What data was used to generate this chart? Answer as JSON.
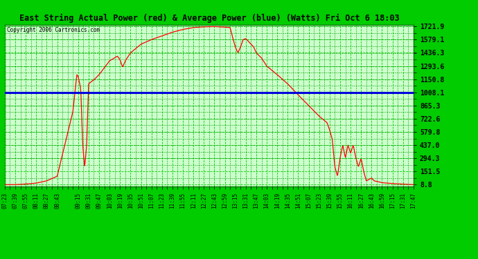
{
  "title": "East String Actual Power (red) & Average Power (blue) (Watts) Fri Oct 6 18:03",
  "copyright": "Copyright 2006 Cartronics.com",
  "yticks": [
    8.8,
    151.5,
    294.3,
    437.0,
    579.8,
    722.6,
    865.3,
    1008.1,
    1150.8,
    1293.6,
    1436.3,
    1579.1,
    1721.9
  ],
  "ymin": 8.8,
  "ymax": 1721.9,
  "avg_power": 1008.1,
  "fig_bg_color": "#00cc00",
  "plot_bg": "#ccffcc",
  "line_color": "#ff0000",
  "avg_color": "#0000dd",
  "grid_major_color": "#00dd00",
  "grid_minor_color": "#009900",
  "xtick_labels": [
    "07:23",
    "07:39",
    "07:55",
    "08:11",
    "08:27",
    "08:43",
    "09:15",
    "09:31",
    "09:47",
    "10:03",
    "10:19",
    "10:35",
    "10:51",
    "11:07",
    "11:23",
    "11:39",
    "11:55",
    "12:11",
    "12:27",
    "12:43",
    "12:59",
    "13:15",
    "13:31",
    "13:47",
    "14:03",
    "14:19",
    "14:35",
    "14:51",
    "15:07",
    "15:23",
    "15:39",
    "15:55",
    "16:11",
    "16:27",
    "16:43",
    "16:59",
    "17:15",
    "17:31",
    "17:47"
  ]
}
